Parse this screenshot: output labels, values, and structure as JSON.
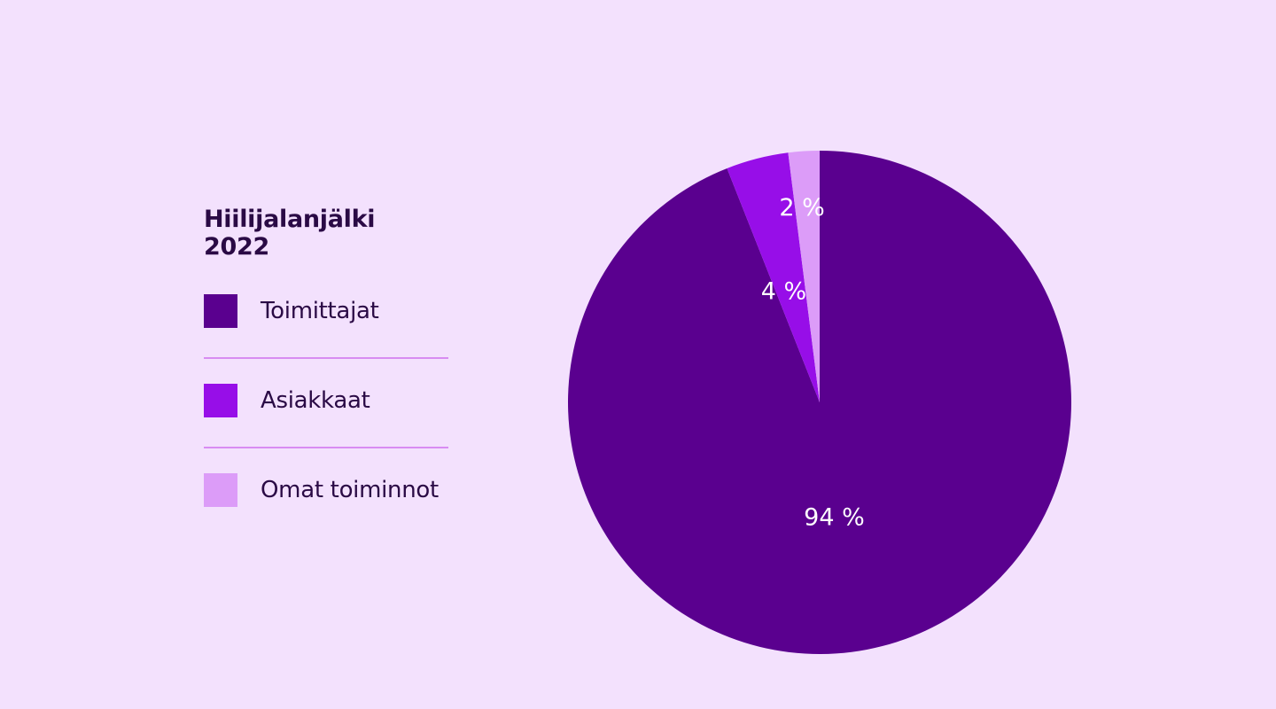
{
  "chart_data": {
    "type": "pie",
    "title": "Hiilijalanjälki 2022",
    "legend_position": "left",
    "slices": [
      {
        "name": "Toimittajat",
        "value": 94,
        "label": "94 %",
        "color": "#5a008f"
      },
      {
        "name": "Asiakkaat",
        "value": 4,
        "label": "4 %",
        "color": "#970ee8"
      },
      {
        "name": "Omat toiminnot",
        "value": 2,
        "label": "2 %",
        "color": "#dc9cf8"
      }
    ]
  },
  "legend": {
    "title": "Hiilijalanjälki 2022",
    "items": [
      {
        "label": "Toimittajat",
        "color": "#5a008f"
      },
      {
        "label": "Asiakkaat",
        "color": "#970ee8"
      },
      {
        "label": "Omat toiminnot",
        "color": "#dc9cf8"
      }
    ]
  },
  "colors": {
    "background": "#f3e1fd",
    "divider": "#d88cf2",
    "callout_line": "#a63fd6"
  }
}
